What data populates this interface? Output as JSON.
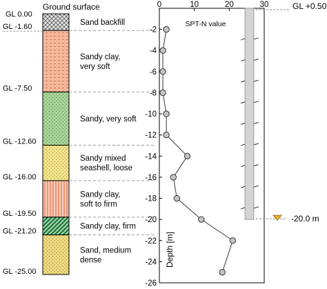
{
  "header": {
    "ground_surface": "Ground surface"
  },
  "depth_labels": [
    "GL 0.00",
    "GL -1.60",
    "GL -7.50",
    "GL -12.60",
    "GL -16.00",
    "GL -19.50",
    "GL -21.20",
    "GL -25.00"
  ],
  "layers": [
    {
      "from": 0.0,
      "to": 1.6,
      "lines": [
        "Sand backfill"
      ],
      "color": "#e4e4e4",
      "pattern": "crosshatch"
    },
    {
      "from": 1.6,
      "to": 7.5,
      "lines": [
        "Sandy clay,",
        "very soft"
      ],
      "color": "#f4b79a",
      "pattern": "hlines-orange"
    },
    {
      "from": 7.5,
      "to": 12.6,
      "lines": [
        "Sandy, very soft"
      ],
      "color": "#a9d49a",
      "pattern": "dots-green"
    },
    {
      "from": 12.6,
      "to": 16.0,
      "lines": [
        "Sandy mixed",
        "seashell, loose"
      ],
      "color": "#f4e58c",
      "pattern": "dots-yellow"
    },
    {
      "from": 16.0,
      "to": 19.5,
      "lines": [
        "Sandy clay,",
        "soft to firm"
      ],
      "color": "#f6c0a6",
      "pattern": "vlines-red"
    },
    {
      "from": 19.5,
      "to": 21.2,
      "lines": [
        "Sandy clay, firm"
      ],
      "color": "#2fa14e",
      "pattern": "diag-green"
    },
    {
      "from": 21.2,
      "to": 25.0,
      "lines": [
        "Sand, medium",
        "dense"
      ],
      "color": "#eedb82",
      "pattern": "dots-tan"
    }
  ],
  "annotations": {
    "top_level": "GL +0.50",
    "water_level": "-20.0 m"
  },
  "chart_data": {
    "type": "scatter",
    "title": "SPT-N value",
    "ylabel": "Depth [m]",
    "x_ticks": [
      0,
      10,
      20,
      30
    ],
    "xlim": [
      0,
      30
    ],
    "y_ticks": [
      -2,
      -4,
      -6,
      -8,
      -10,
      -12,
      -14,
      -16,
      -18,
      -20,
      -22,
      -24,
      -26
    ],
    "ylim": [
      -26,
      0
    ],
    "points": [
      {
        "x": 2,
        "y": -2.0
      },
      {
        "x": 1,
        "y": -4.0
      },
      {
        "x": 1,
        "y": -6.0
      },
      {
        "x": 1,
        "y": -8.0
      },
      {
        "x": 2,
        "y": -10.0
      },
      {
        "x": 2,
        "y": -12.0
      },
      {
        "x": 8,
        "y": -14.0
      },
      {
        "x": 4,
        "y": -16.0
      },
      {
        "x": 5,
        "y": -18.0
      },
      {
        "x": 12,
        "y": -20.0
      },
      {
        "x": 21,
        "y": -22.0
      },
      {
        "x": 18,
        "y": -25.0
      }
    ],
    "grid": false,
    "pile": {
      "x_from": 24.5,
      "x_to": 27.0,
      "top": 0.5,
      "bottom": -20.0
    }
  }
}
